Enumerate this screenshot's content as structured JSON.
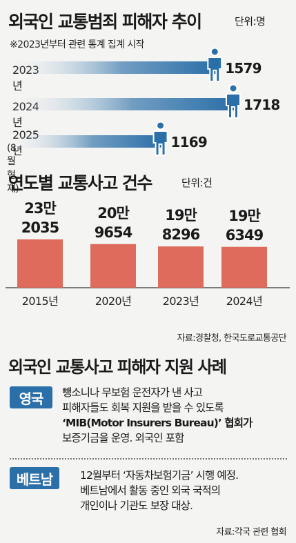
{
  "title": "외국인 교통범죄 피해자 추이",
  "unit_label": "단위:명",
  "note": "※2023년부터 관련 통계 집계 시작",
  "chart_data": [
    {
      "type": "bar",
      "orientation": "horizontal",
      "title": "외국인 교통범죄 피해자 추이",
      "unit": "단위:명",
      "categories": [
        "2023년",
        "2024년",
        "2025년 (8월 현재)"
      ],
      "category_labels": [
        {
          "main": "2023년",
          "sub": ""
        },
        {
          "main": "2024년",
          "sub": ""
        },
        {
          "main": "2025년",
          "sub": "(8월 현재)"
        }
      ],
      "values": [
        1579,
        1718,
        1169
      ],
      "value_labels": [
        "1579",
        "1718",
        "1169"
      ],
      "bar_color": "#2b6fa8",
      "icon": "person-icon"
    },
    {
      "type": "bar",
      "title": "연도별 교통사고 건수",
      "unit": "단위:건",
      "categories": [
        "2015년",
        "2020년",
        "2023년",
        "2024년"
      ],
      "values": [
        232035,
        209654,
        198296,
        196349
      ],
      "value_labels": [
        [
          "23만",
          "2035"
        ],
        [
          "20만",
          "9654"
        ],
        [
          "19만",
          "8296"
        ],
        [
          "19만",
          "6349"
        ]
      ],
      "ylim": [
        0,
        300000
      ],
      "bar_color": "#de6b5c"
    }
  ],
  "source1": "자료:경찰청, 한국도로교통공단",
  "section3": {
    "title": "외국인 교통사고 피해자 지원 사례",
    "cases": [
      {
        "country": "영국",
        "lines": [
          "뺑소니나 무보험 운전자가 낸 사고",
          "피해자들도 회복 지원을 받을 수 있도록",
          "‘MIB(Motor Insurers Bureau)’ 협회가",
          "보증기금을 운영. 외국인 포함"
        ]
      },
      {
        "country": "베트남",
        "lines": [
          "12월부터 ‘자동차보험기금’ 시행 예정.",
          "베트남에서 활동 중인 외국 국적의",
          "개인이나 기관도 보장 대상."
        ]
      }
    ]
  },
  "source2": "자료:각국 관련 협회"
}
